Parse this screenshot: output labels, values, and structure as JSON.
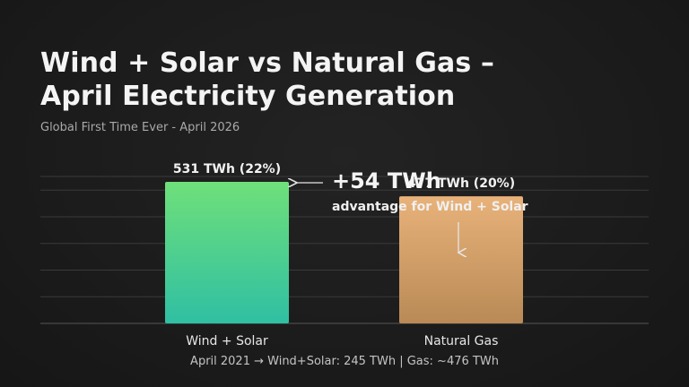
{
  "title_lines": [
    "Wind + Solar vs Natural Gas –",
    "April Electricity Generation"
  ],
  "subtitle": "Global First Time Ever - April 2026",
  "annotation": {
    "value": "+54 TWh",
    "text": "advantage for Wind + Solar"
  },
  "footnote": "April 2021 → Wind+Solar: 245 TWh | Gas: ~476 TWh",
  "chart_data": {
    "type": "bar",
    "categories": [
      "Wind + Solar",
      "Natural Gas"
    ],
    "values": [
      531,
      477
    ],
    "data_labels": [
      "531 TWh (22%)",
      "477 TWh (20%)"
    ],
    "shares_percent": [
      22,
      20
    ],
    "unit": "TWh",
    "title": "Wind + Solar vs Natural Gas – April Electricity Generation",
    "xlabel": "",
    "ylabel": "",
    "ylim": [
      0,
      600
    ],
    "grid": true,
    "colors": {
      "wind_solar_top": "#6fe07a",
      "wind_solar_bottom": "#2fbfa3",
      "gas_top": "#e8b27a",
      "gas_bottom": "#b98a56",
      "grid": "#3a3a3a",
      "baseline": "#555555"
    }
  }
}
